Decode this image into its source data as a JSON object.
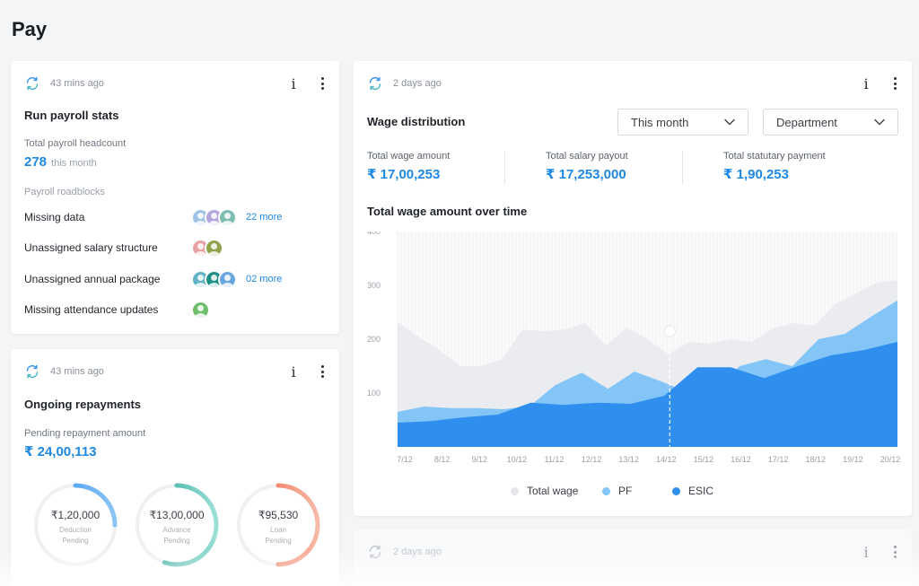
{
  "page": {
    "title": "Pay"
  },
  "payroll_card": {
    "updated": "43 mins ago",
    "title": "Run payroll stats",
    "headcount_label": "Total payroll headcount",
    "headcount_value": "278",
    "headcount_suffix": "this month",
    "roadblocks_label": "Payroll roadblocks",
    "roadblocks": [
      {
        "label": "Missing data",
        "avatar_colors": [
          "#9fc3e6",
          "#b3a6df",
          "#7fbfb3"
        ],
        "more": "22 more"
      },
      {
        "label": "Unassigned salary structure",
        "avatar_colors": [
          "#e7a3a3",
          "#8fa34a"
        ],
        "more": ""
      },
      {
        "label": "Unassigned annual package",
        "avatar_colors": [
          "#5fb3c4",
          "#1d8f86",
          "#6aa7e0"
        ],
        "more": "02 more"
      },
      {
        "label": "Missing attendance updates",
        "avatar_colors": [
          "#6fbf6a"
        ],
        "more": ""
      }
    ]
  },
  "repayments_card": {
    "updated": "43 mins ago",
    "title": "Ongoing repayments",
    "pending_label": "Pending repayment amount",
    "pending_value": "₹ 24,00,113",
    "donuts": [
      {
        "amount": "₹1,20,000",
        "line1": "Deduction",
        "line2": "Pending",
        "progress": 0.25,
        "color_start": "#2f8ff0",
        "color_end": "#8cc4f6"
      },
      {
        "amount": "₹13,00,000",
        "line1": "Advance",
        "line2": "Pending",
        "progress": 0.55,
        "color_start": "#1f9f90",
        "color_end": "#9be0d6"
      },
      {
        "amount": "₹95,530",
        "line1": "Loan",
        "line2": "Pending",
        "progress": 0.5,
        "color_start": "#f2603d",
        "color_end": "#f7b9a8"
      }
    ]
  },
  "wage_card": {
    "updated": "2 days ago",
    "title": "Wage distribution",
    "period_dropdown": "This month",
    "group_dropdown": "Department",
    "stats": [
      {
        "label": "Total wage amount",
        "value": "₹ 17,00,253"
      },
      {
        "label": "Total salary payout",
        "value": "₹ 17,253,000"
      },
      {
        "label": "Total statutary payment",
        "value": "₹ 1,90,253"
      }
    ],
    "chart_title": "Total wage amount over time"
  },
  "chart_data": {
    "type": "area",
    "title": "Total wage amount over time",
    "x": [
      "7/12",
      "8/12",
      "9/12",
      "10/12",
      "11/12",
      "12/12",
      "13/12",
      "14/12",
      "15/12",
      "16/12",
      "17/12",
      "18/12",
      "19/12",
      "20/12"
    ],
    "x_labels_shown": [
      "7/12",
      "8/12",
      "9/12",
      "10/12",
      "11/12",
      "12/12",
      "13/12",
      "14/12",
      "15/12",
      "16/12",
      "17/12",
      "18/12",
      "19/12",
      "20/12"
    ],
    "y_ticks": [
      100,
      200,
      300,
      400
    ],
    "ylim": [
      0,
      400
    ],
    "legend_position": "bottom",
    "hover_index": 7,
    "series": [
      {
        "name": "Total wage",
        "color": "#ebecef",
        "points": [
          [
            0,
            232
          ],
          [
            1,
            205
          ],
          [
            2,
            180
          ],
          [
            3,
            150
          ],
          [
            4,
            150
          ],
          [
            5,
            162
          ],
          [
            6,
            218
          ],
          [
            7,
            215
          ],
          [
            8,
            218
          ],
          [
            9,
            230
          ],
          [
            10,
            188
          ],
          [
            11,
            222
          ],
          [
            12,
            200
          ],
          [
            13,
            172
          ],
          [
            14,
            195
          ],
          [
            15,
            192
          ],
          [
            16,
            200
          ],
          [
            17,
            195
          ],
          [
            18,
            220
          ],
          [
            19,
            230
          ],
          [
            20,
            225
          ],
          [
            21,
            265
          ],
          [
            22,
            285
          ],
          [
            23,
            305
          ],
          [
            24,
            310
          ]
        ]
      },
      {
        "name": "PF",
        "color": "#84c5f7",
        "points": [
          [
            0,
            65
          ],
          [
            1,
            75
          ],
          [
            2,
            72
          ],
          [
            3,
            72
          ],
          [
            4,
            70
          ],
          [
            5,
            75
          ],
          [
            6,
            115
          ],
          [
            7,
            138
          ],
          [
            8,
            108
          ],
          [
            9,
            140
          ],
          [
            10,
            122
          ],
          [
            11,
            102
          ],
          [
            12,
            102
          ],
          [
            13,
            150
          ],
          [
            14,
            163
          ],
          [
            15,
            150
          ],
          [
            16,
            200
          ],
          [
            17,
            210
          ],
          [
            18,
            242
          ],
          [
            19,
            272
          ]
        ]
      },
      {
        "name": "ESIC",
        "color": "#2f8fee",
        "points": [
          [
            0,
            45
          ],
          [
            1,
            48
          ],
          [
            2,
            55
          ],
          [
            3,
            60
          ],
          [
            4,
            82
          ],
          [
            5,
            78
          ],
          [
            6,
            82
          ],
          [
            7,
            80
          ],
          [
            8,
            95
          ],
          [
            9,
            148
          ],
          [
            10,
            148
          ],
          [
            11,
            128
          ],
          [
            12,
            150
          ],
          [
            13,
            170
          ],
          [
            14,
            180
          ],
          [
            15,
            195
          ]
        ]
      }
    ]
  },
  "next_card": {
    "updated": "2 days ago"
  }
}
